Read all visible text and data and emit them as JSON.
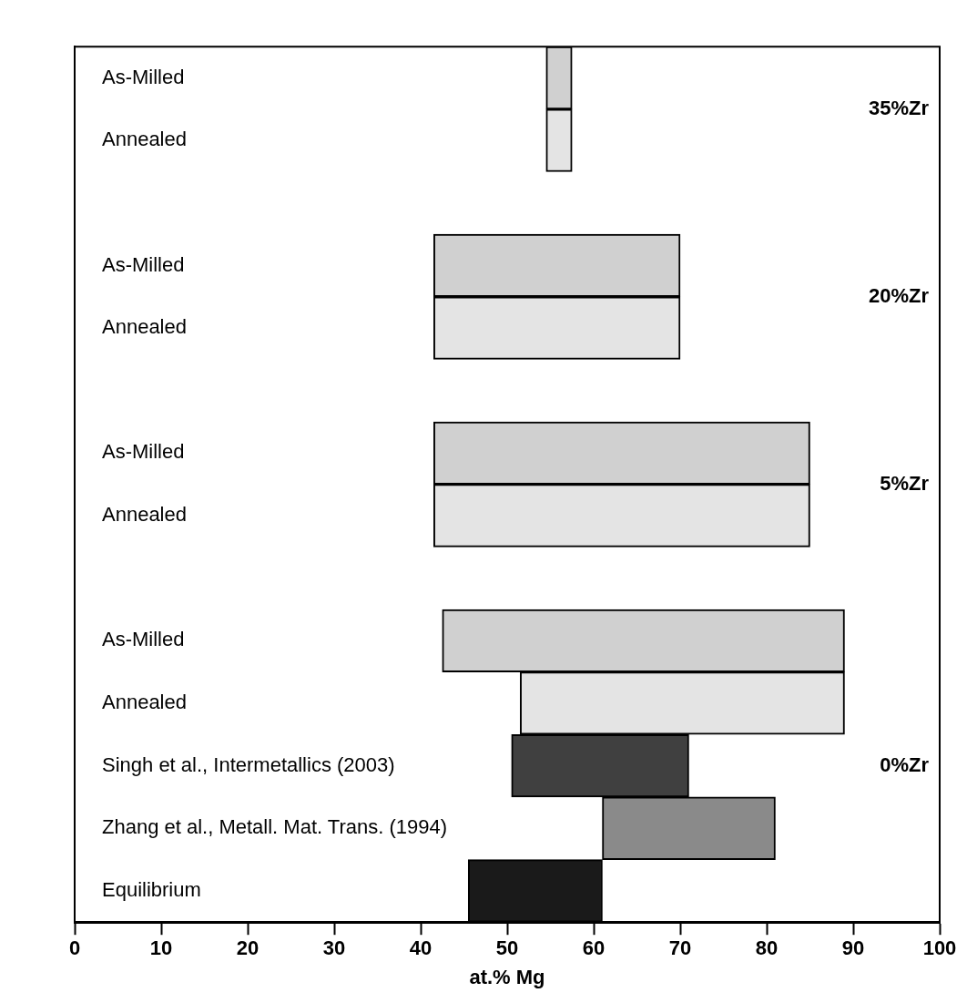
{
  "chart_data": {
    "type": "bar",
    "orientation": "horizontal",
    "xlabel": "at.% Mg",
    "categories": [
      "As-Milled",
      "Annealed",
      null,
      "As-Milled",
      "Annealed",
      null,
      "As-Milled",
      "Annealed",
      null,
      "As-Milled",
      "Annealed",
      "Singh et al., Intermetallics (2003)",
      "Zhang et al., Metall. Mat. Trans. (1994)",
      "Equilibrium"
    ],
    "series": [
      {
        "name": "35%Zr",
        "colors": [
          "#d0d0d0",
          "#e4e4e4",
          null,
          null,
          null,
          null,
          null,
          null,
          null,
          null,
          null,
          null,
          null,
          null
        ],
        "base": [
          54.5,
          54.5,
          null,
          null,
          null,
          null,
          null,
          null,
          null,
          null,
          null,
          null,
          null,
          null
        ],
        "values": [
          3,
          3,
          null,
          null,
          null,
          null,
          null,
          null,
          null,
          null,
          null,
          null,
          null,
          null
        ]
      },
      {
        "name": "20%Zr",
        "colors": [
          null,
          null,
          null,
          "#d0d0d0",
          "#e4e4e4",
          null,
          null,
          null,
          null,
          null,
          null,
          null,
          null,
          null
        ],
        "base": [
          null,
          null,
          null,
          41.5,
          41.5,
          null,
          null,
          null,
          null,
          null,
          null,
          null,
          null,
          null
        ],
        "values": [
          null,
          null,
          null,
          28.5,
          28.5,
          null,
          null,
          null,
          null,
          null,
          null,
          null,
          null,
          null
        ]
      },
      {
        "name": "5%Zr",
        "colors": [
          null,
          null,
          null,
          null,
          null,
          null,
          "#d0d0d0",
          "#e4e4e4",
          null,
          null,
          null,
          null,
          null,
          null
        ],
        "base": [
          null,
          null,
          null,
          null,
          null,
          null,
          41.5,
          41.5,
          null,
          null,
          null,
          null,
          null,
          null
        ],
        "values": [
          null,
          null,
          null,
          null,
          null,
          null,
          43.5,
          43.5,
          null,
          null,
          null,
          null,
          null,
          null
        ]
      },
      {
        "name": "0%Zr",
        "colors": [
          null,
          null,
          null,
          null,
          null,
          null,
          null,
          null,
          null,
          "#d0d0d0",
          "#e4e4e4",
          "#404040",
          "#8a8a8a",
          "#1a1a1a"
        ],
        "base": [
          null,
          null,
          null,
          null,
          null,
          null,
          null,
          null,
          null,
          42.5,
          51.5,
          50.5,
          61,
          45.5
        ],
        "values": [
          null,
          null,
          null,
          null,
          null,
          null,
          null,
          null,
          null,
          46.5,
          37.5,
          20.5,
          20,
          15.5
        ]
      }
    ],
    "xlim": [
      0,
      100
    ],
    "xticks": [
      0,
      10,
      20,
      30,
      40,
      50,
      60,
      70,
      80,
      90,
      100
    ],
    "grid": false,
    "legend": false
  }
}
